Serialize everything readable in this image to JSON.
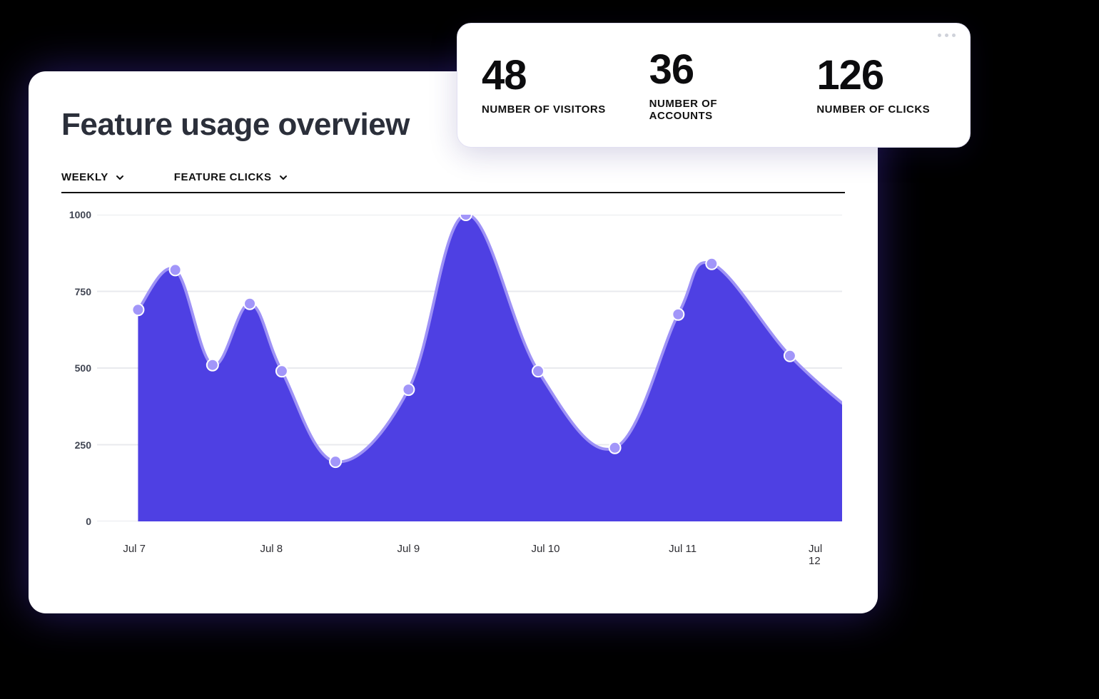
{
  "card": {
    "title": "Feature usage overview",
    "filters": {
      "range": "WEEKLY",
      "metric": "FEATURE CLICKS"
    }
  },
  "stats": {
    "visitors": {
      "value": "48",
      "label": "NUMBER OF VISITORS"
    },
    "accounts": {
      "value": "36",
      "label": "NUMBER OF ACCOUNTS"
    },
    "clicks": {
      "value": "126",
      "label": "NUMBER OF CLICKS"
    }
  },
  "chart": {
    "type": "area",
    "background_color": "#ffffff",
    "grid_color": "#e9eaee",
    "area_fill": "#4e40e3",
    "line_stroke": "#9e92f6",
    "line_width": 4,
    "marker_fill": "#a296f9",
    "marker_stroke": "#ffffff",
    "marker_radius": 8,
    "ylim": [
      0,
      1000
    ],
    "ytick_step": 250,
    "y_ticks": [
      "0",
      "250",
      "500",
      "750",
      "1000"
    ],
    "x_labels": [
      "Jul 7",
      "Jul 8",
      "Jul 9",
      "Jul 10",
      "Jul 11",
      "Jul 12"
    ],
    "label_fontsize": 14,
    "label_color": "#404552",
    "points": [
      {
        "x": 0.055,
        "y": 690
      },
      {
        "x": 0.105,
        "y": 820
      },
      {
        "x": 0.155,
        "y": 510
      },
      {
        "x": 0.205,
        "y": 710
      },
      {
        "x": 0.248,
        "y": 490
      },
      {
        "x": 0.32,
        "y": 195
      },
      {
        "x": 0.418,
        "y": 430
      },
      {
        "x": 0.495,
        "y": 1000
      },
      {
        "x": 0.592,
        "y": 490
      },
      {
        "x": 0.695,
        "y": 240
      },
      {
        "x": 0.78,
        "y": 675
      },
      {
        "x": 0.825,
        "y": 840
      },
      {
        "x": 0.93,
        "y": 540
      },
      {
        "x": 1.02,
        "y": 345
      }
    ]
  }
}
